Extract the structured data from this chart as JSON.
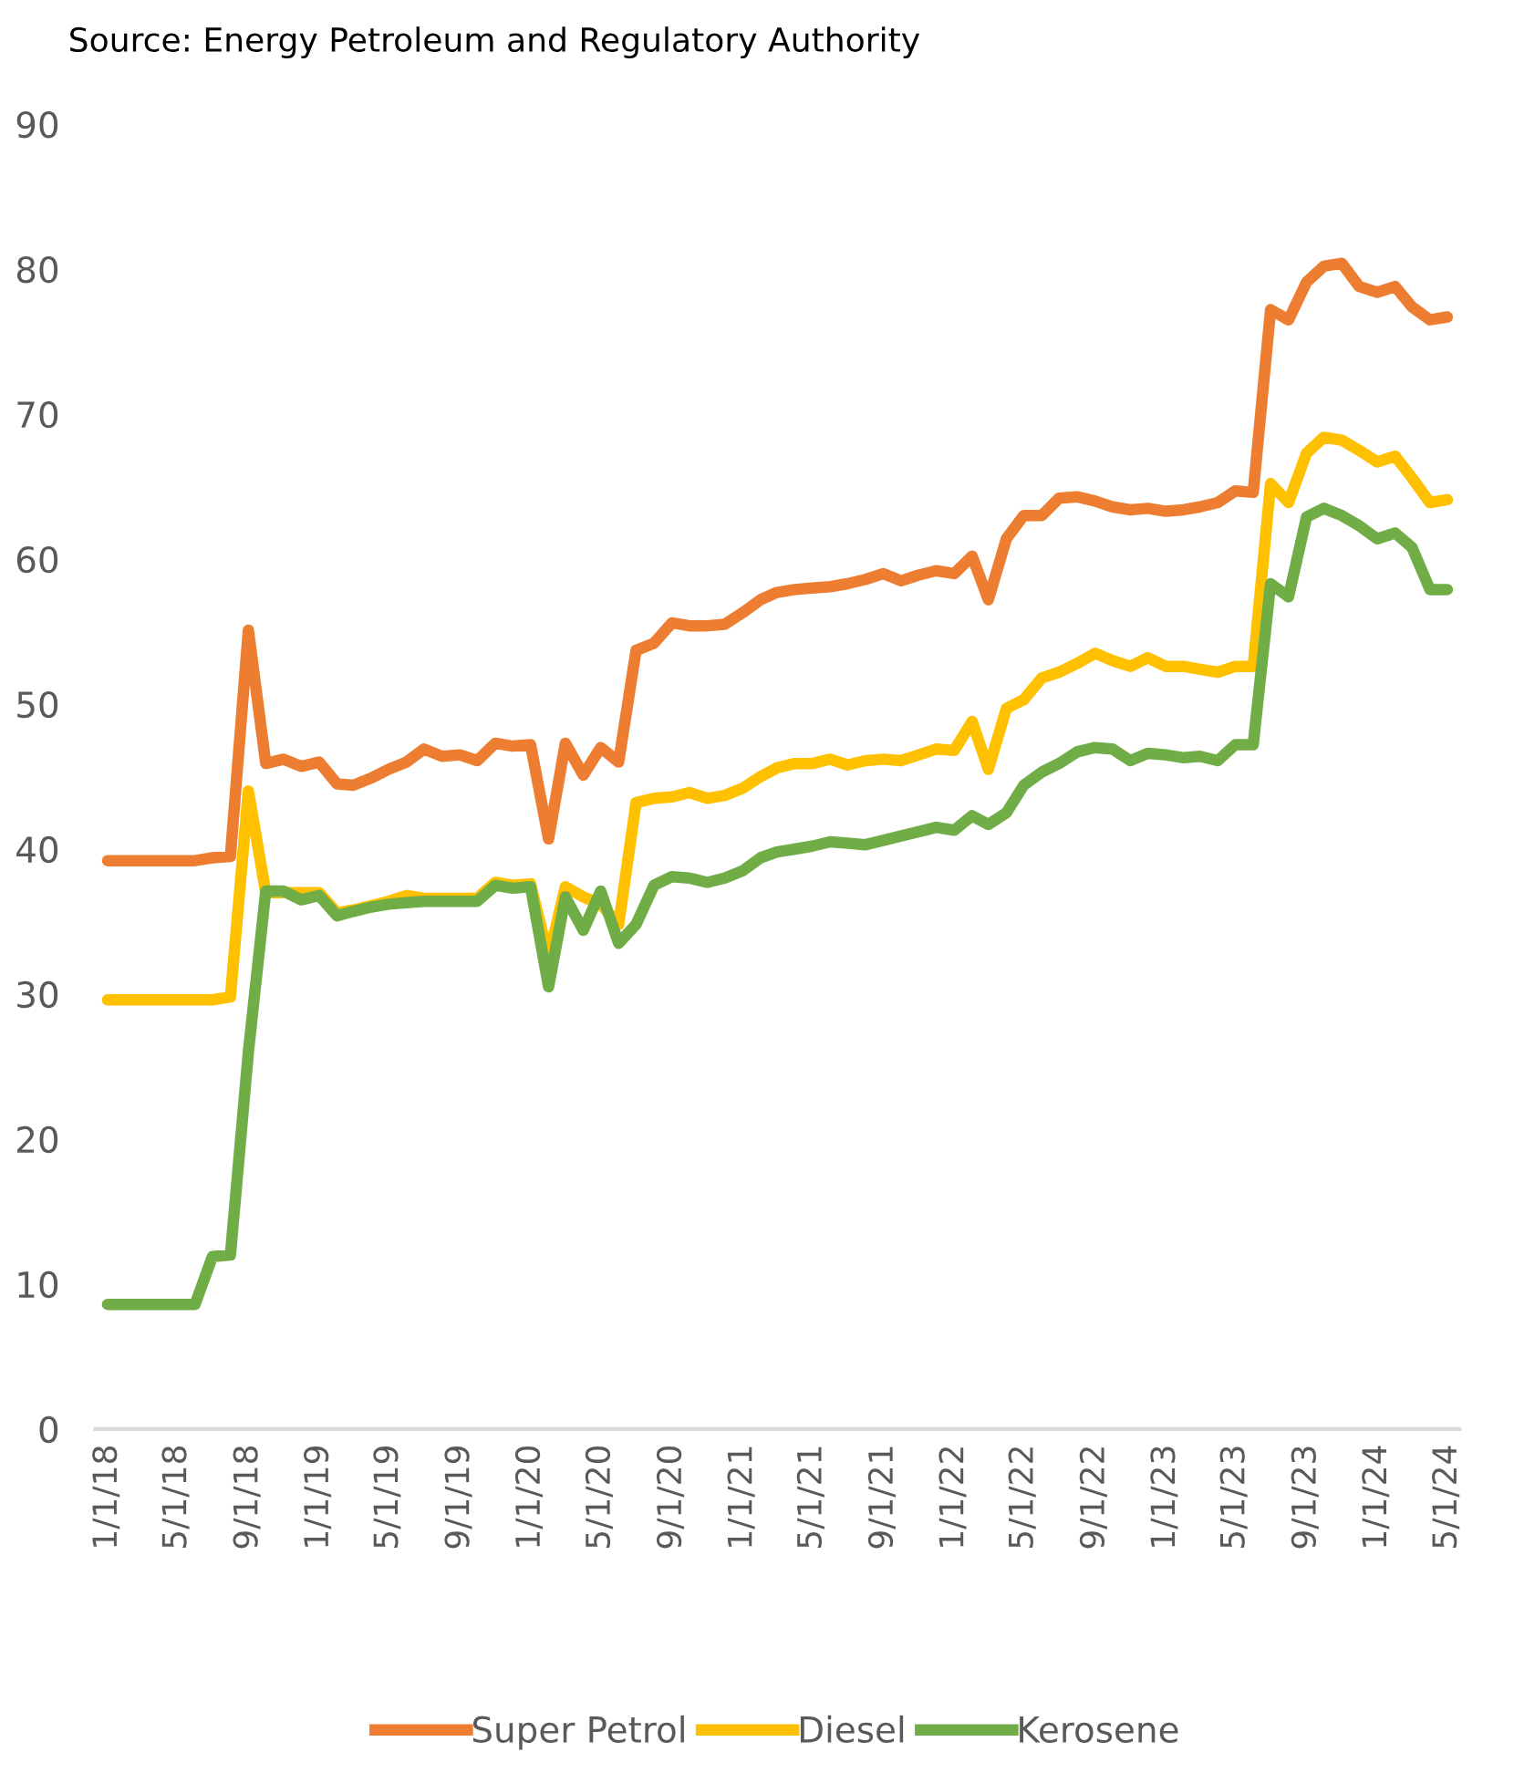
{
  "chart_data": {
    "type": "line",
    "annotations": [
      "Source: Energy Petroleum and Regulatory Authority"
    ],
    "x": [
      "2018-01",
      "2018-02",
      "2018-03",
      "2018-04",
      "2018-05",
      "2018-06",
      "2018-07",
      "2018-08",
      "2018-09",
      "2018-10",
      "2018-11",
      "2018-12",
      "2019-01",
      "2019-02",
      "2019-03",
      "2019-04",
      "2019-05",
      "2019-06",
      "2019-07",
      "2019-08",
      "2019-09",
      "2019-10",
      "2019-11",
      "2019-12",
      "2020-01",
      "2020-02",
      "2020-03",
      "2020-04",
      "2020-05",
      "2020-06",
      "2020-07",
      "2020-08",
      "2020-09",
      "2020-10",
      "2020-11",
      "2020-12",
      "2021-01",
      "2021-02",
      "2021-03",
      "2021-04",
      "2021-05",
      "2021-06",
      "2021-07",
      "2021-08",
      "2021-09",
      "2021-10",
      "2021-11",
      "2021-12",
      "2022-01",
      "2022-02",
      "2022-03",
      "2022-04",
      "2022-05",
      "2022-06",
      "2022-07",
      "2022-08",
      "2022-09",
      "2022-10",
      "2022-11",
      "2022-12",
      "2023-01",
      "2023-02",
      "2023-03",
      "2023-04",
      "2023-05",
      "2023-06",
      "2023-07",
      "2023-08",
      "2023-09",
      "2023-10",
      "2023-11",
      "2023-12",
      "2024-01",
      "2024-02",
      "2024-03",
      "2024-04",
      "2024-05"
    ],
    "series": [
      {
        "name": "Super Petrol",
        "color": "#ed7d31",
        "values": [
          39.2,
          39.2,
          39.2,
          39.2,
          39.2,
          39.2,
          39.4,
          39.5,
          55.1,
          45.9,
          46.2,
          45.7,
          46.0,
          44.5,
          44.4,
          44.9,
          45.5,
          46.0,
          46.9,
          46.4,
          46.5,
          46.1,
          47.3,
          47.1,
          47.2,
          40.7,
          47.3,
          45.1,
          47.0,
          46.0,
          53.7,
          54.2,
          55.6,
          55.4,
          55.4,
          55.5,
          56.3,
          57.2,
          57.7,
          57.9,
          58.0,
          58.1,
          58.3,
          58.6,
          59.0,
          58.5,
          58.9,
          59.2,
          59.0,
          60.2,
          57.2,
          61.4,
          63.0,
          63.0,
          64.2,
          64.3,
          64.0,
          63.6,
          63.4,
          63.5,
          63.3,
          63.4,
          63.6,
          63.9,
          64.7,
          64.6,
          77.2,
          76.5,
          79.1,
          80.2,
          80.4,
          78.8,
          78.4,
          78.8,
          77.4,
          76.5,
          76.7
        ]
      },
      {
        "name": "Diesel",
        "color": "#ffc000",
        "values": [
          29.6,
          29.6,
          29.6,
          29.6,
          29.6,
          29.6,
          29.6,
          29.8,
          44.0,
          37.0,
          37.0,
          37.0,
          37.0,
          35.6,
          35.8,
          36.1,
          36.4,
          36.8,
          36.6,
          36.6,
          36.6,
          36.6,
          37.7,
          37.5,
          37.6,
          32.5,
          37.4,
          36.7,
          36.2,
          34.8,
          43.2,
          43.5,
          43.6,
          43.9,
          43.5,
          43.7,
          44.2,
          45.0,
          45.6,
          45.9,
          45.9,
          46.2,
          45.8,
          46.1,
          46.2,
          46.1,
          46.5,
          46.9,
          46.8,
          48.8,
          45.5,
          49.7,
          50.3,
          51.8,
          52.2,
          52.8,
          53.5,
          53.0,
          52.6,
          53.2,
          52.6,
          52.6,
          52.4,
          52.2,
          52.6,
          52.6,
          65.2,
          63.9,
          67.3,
          68.4,
          68.2,
          67.5,
          66.7,
          67.1,
          65.6,
          63.9,
          64.1
        ]
      },
      {
        "name": "Kerosene",
        "color": "#70ad47",
        "values": [
          8.6,
          8.6,
          8.6,
          8.6,
          8.6,
          8.6,
          11.9,
          12.0,
          26.0,
          37.1,
          37.1,
          36.5,
          36.8,
          35.4,
          35.7,
          36.0,
          36.2,
          36.3,
          36.4,
          36.4,
          36.4,
          36.4,
          37.5,
          37.3,
          37.4,
          30.5,
          36.7,
          34.4,
          37.1,
          33.5,
          34.8,
          37.5,
          38.1,
          38.0,
          37.7,
          38.0,
          38.5,
          39.4,
          39.8,
          40.0,
          40.2,
          40.5,
          40.4,
          40.3,
          40.6,
          40.9,
          41.2,
          41.5,
          41.3,
          42.3,
          41.7,
          42.5,
          44.4,
          45.3,
          45.9,
          46.7,
          47.0,
          46.9,
          46.1,
          46.6,
          46.5,
          46.3,
          46.4,
          46.1,
          47.2,
          47.2,
          58.3,
          57.4,
          62.9,
          63.5,
          63.0,
          62.3,
          61.4,
          61.8,
          60.8,
          57.9,
          57.9
        ]
      }
    ],
    "xlim": [
      "2017-12-11",
      "2024-05-22"
    ],
    "xticks": [
      {
        "value": "2018-01-01",
        "label": "1/1/18"
      },
      {
        "value": "2018-05-01",
        "label": "5/1/18"
      },
      {
        "value": "2018-09-01",
        "label": "9/1/18"
      },
      {
        "value": "2019-01-01",
        "label": "1/1/19"
      },
      {
        "value": "2019-05-01",
        "label": "5/1/19"
      },
      {
        "value": "2019-09-01",
        "label": "9/1/19"
      },
      {
        "value": "2020-01-01",
        "label": "1/1/20"
      },
      {
        "value": "2020-05-01",
        "label": "5/1/20"
      },
      {
        "value": "2020-09-01",
        "label": "9/1/20"
      },
      {
        "value": "2021-01-01",
        "label": "1/1/21"
      },
      {
        "value": "2021-05-01",
        "label": "5/1/21"
      },
      {
        "value": "2021-09-01",
        "label": "9/1/21"
      },
      {
        "value": "2022-01-01",
        "label": "1/1/22"
      },
      {
        "value": "2022-05-01",
        "label": "5/1/22"
      },
      {
        "value": "2022-09-01",
        "label": "9/1/22"
      },
      {
        "value": "2023-01-01",
        "label": "1/1/23"
      },
      {
        "value": "2023-05-01",
        "label": "5/1/23"
      },
      {
        "value": "2023-09-01",
        "label": "9/1/23"
      },
      {
        "value": "2024-01-01",
        "label": "1/1/24"
      },
      {
        "value": "2024-05-01",
        "label": "5/1/24"
      }
    ],
    "ylim": [
      0,
      90
    ],
    "yticks": [
      0,
      10,
      20,
      30,
      40,
      50,
      60,
      70,
      80,
      90
    ],
    "grid": false,
    "legend": "bottom",
    "marker": "none",
    "line_style": "solid"
  }
}
